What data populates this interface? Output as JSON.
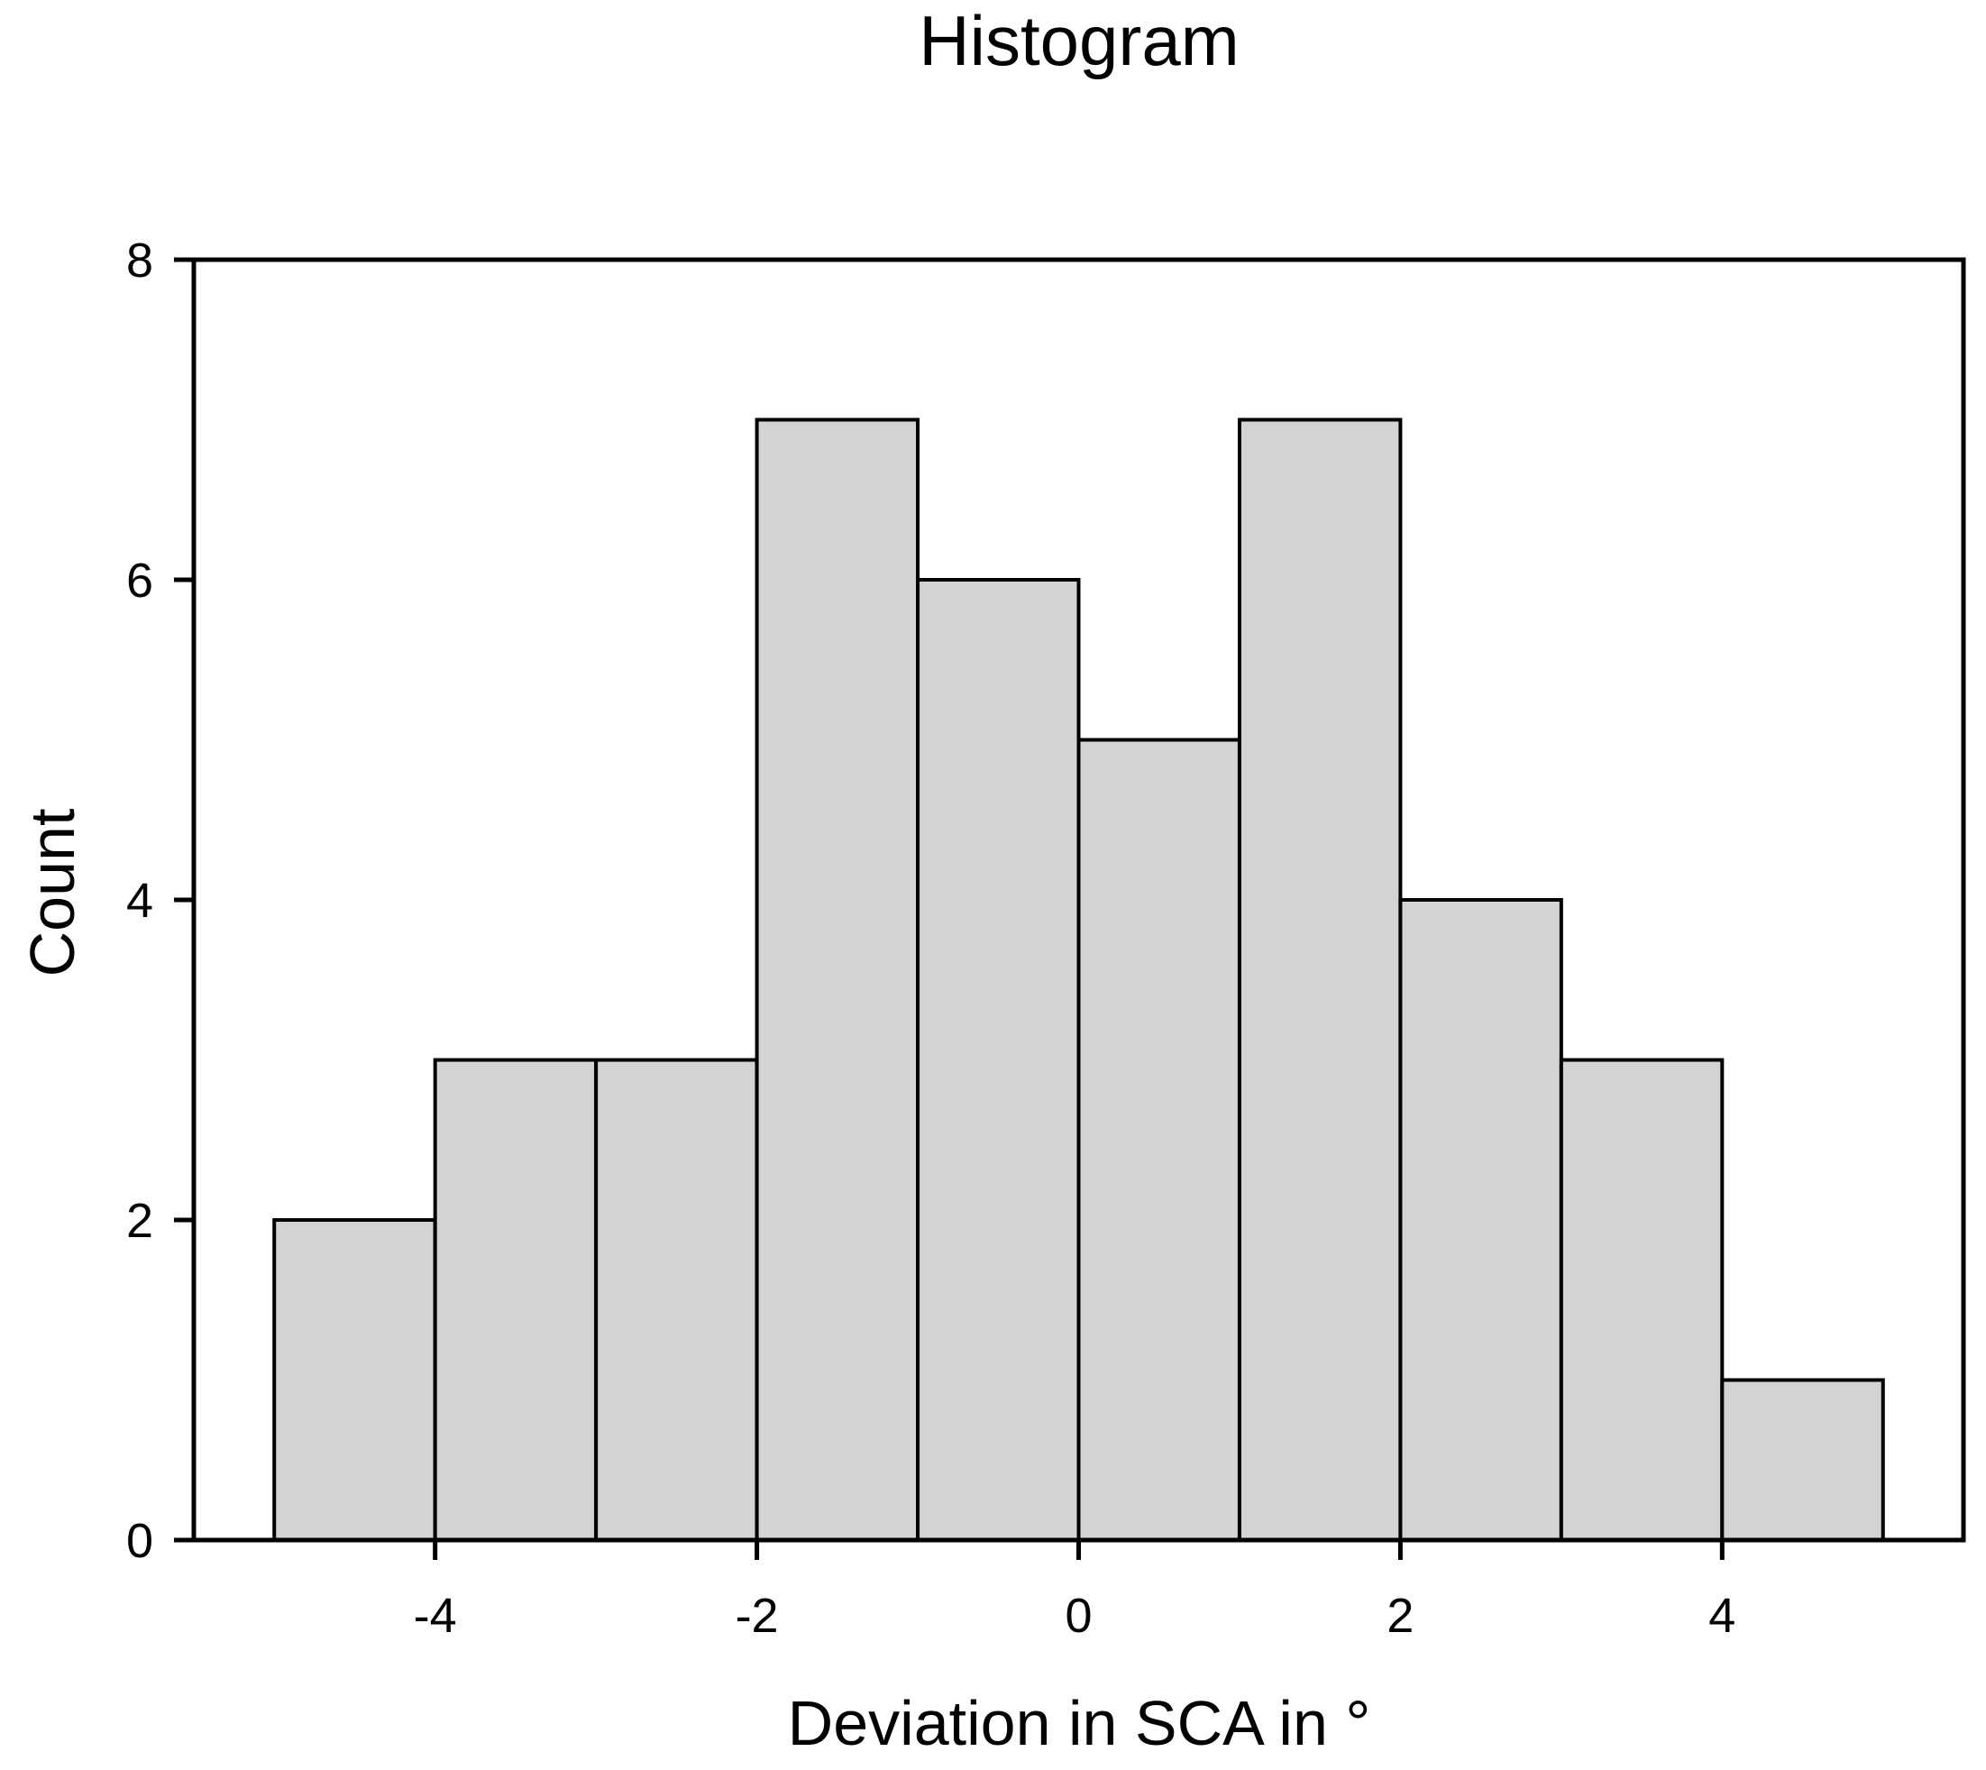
{
  "title": "Histogram",
  "chart_data": {
    "type": "bar",
    "subtype": "histogram",
    "title": "Histogram",
    "xlabel": "Deviation in SCA in °",
    "ylabel": "Count",
    "bin_edges": [
      -5,
      -4,
      -3,
      -2,
      -1,
      0,
      1,
      2,
      3,
      4,
      5
    ],
    "counts": [
      2,
      3,
      3,
      7,
      6,
      5,
      7,
      4,
      3,
      1
    ],
    "xlim": [
      -5.5,
      5.5
    ],
    "ylim": [
      0,
      8
    ],
    "x_ticks": [
      -4,
      -2,
      0,
      2,
      4
    ],
    "y_ticks": [
      0,
      2,
      4,
      6,
      8
    ],
    "grid": false,
    "legend": "none",
    "colors": {
      "bar_fill": "#d3d3d3",
      "bar_stroke": "#000000",
      "axis": "#000000",
      "text": "#000000",
      "background": "#ffffff"
    }
  }
}
